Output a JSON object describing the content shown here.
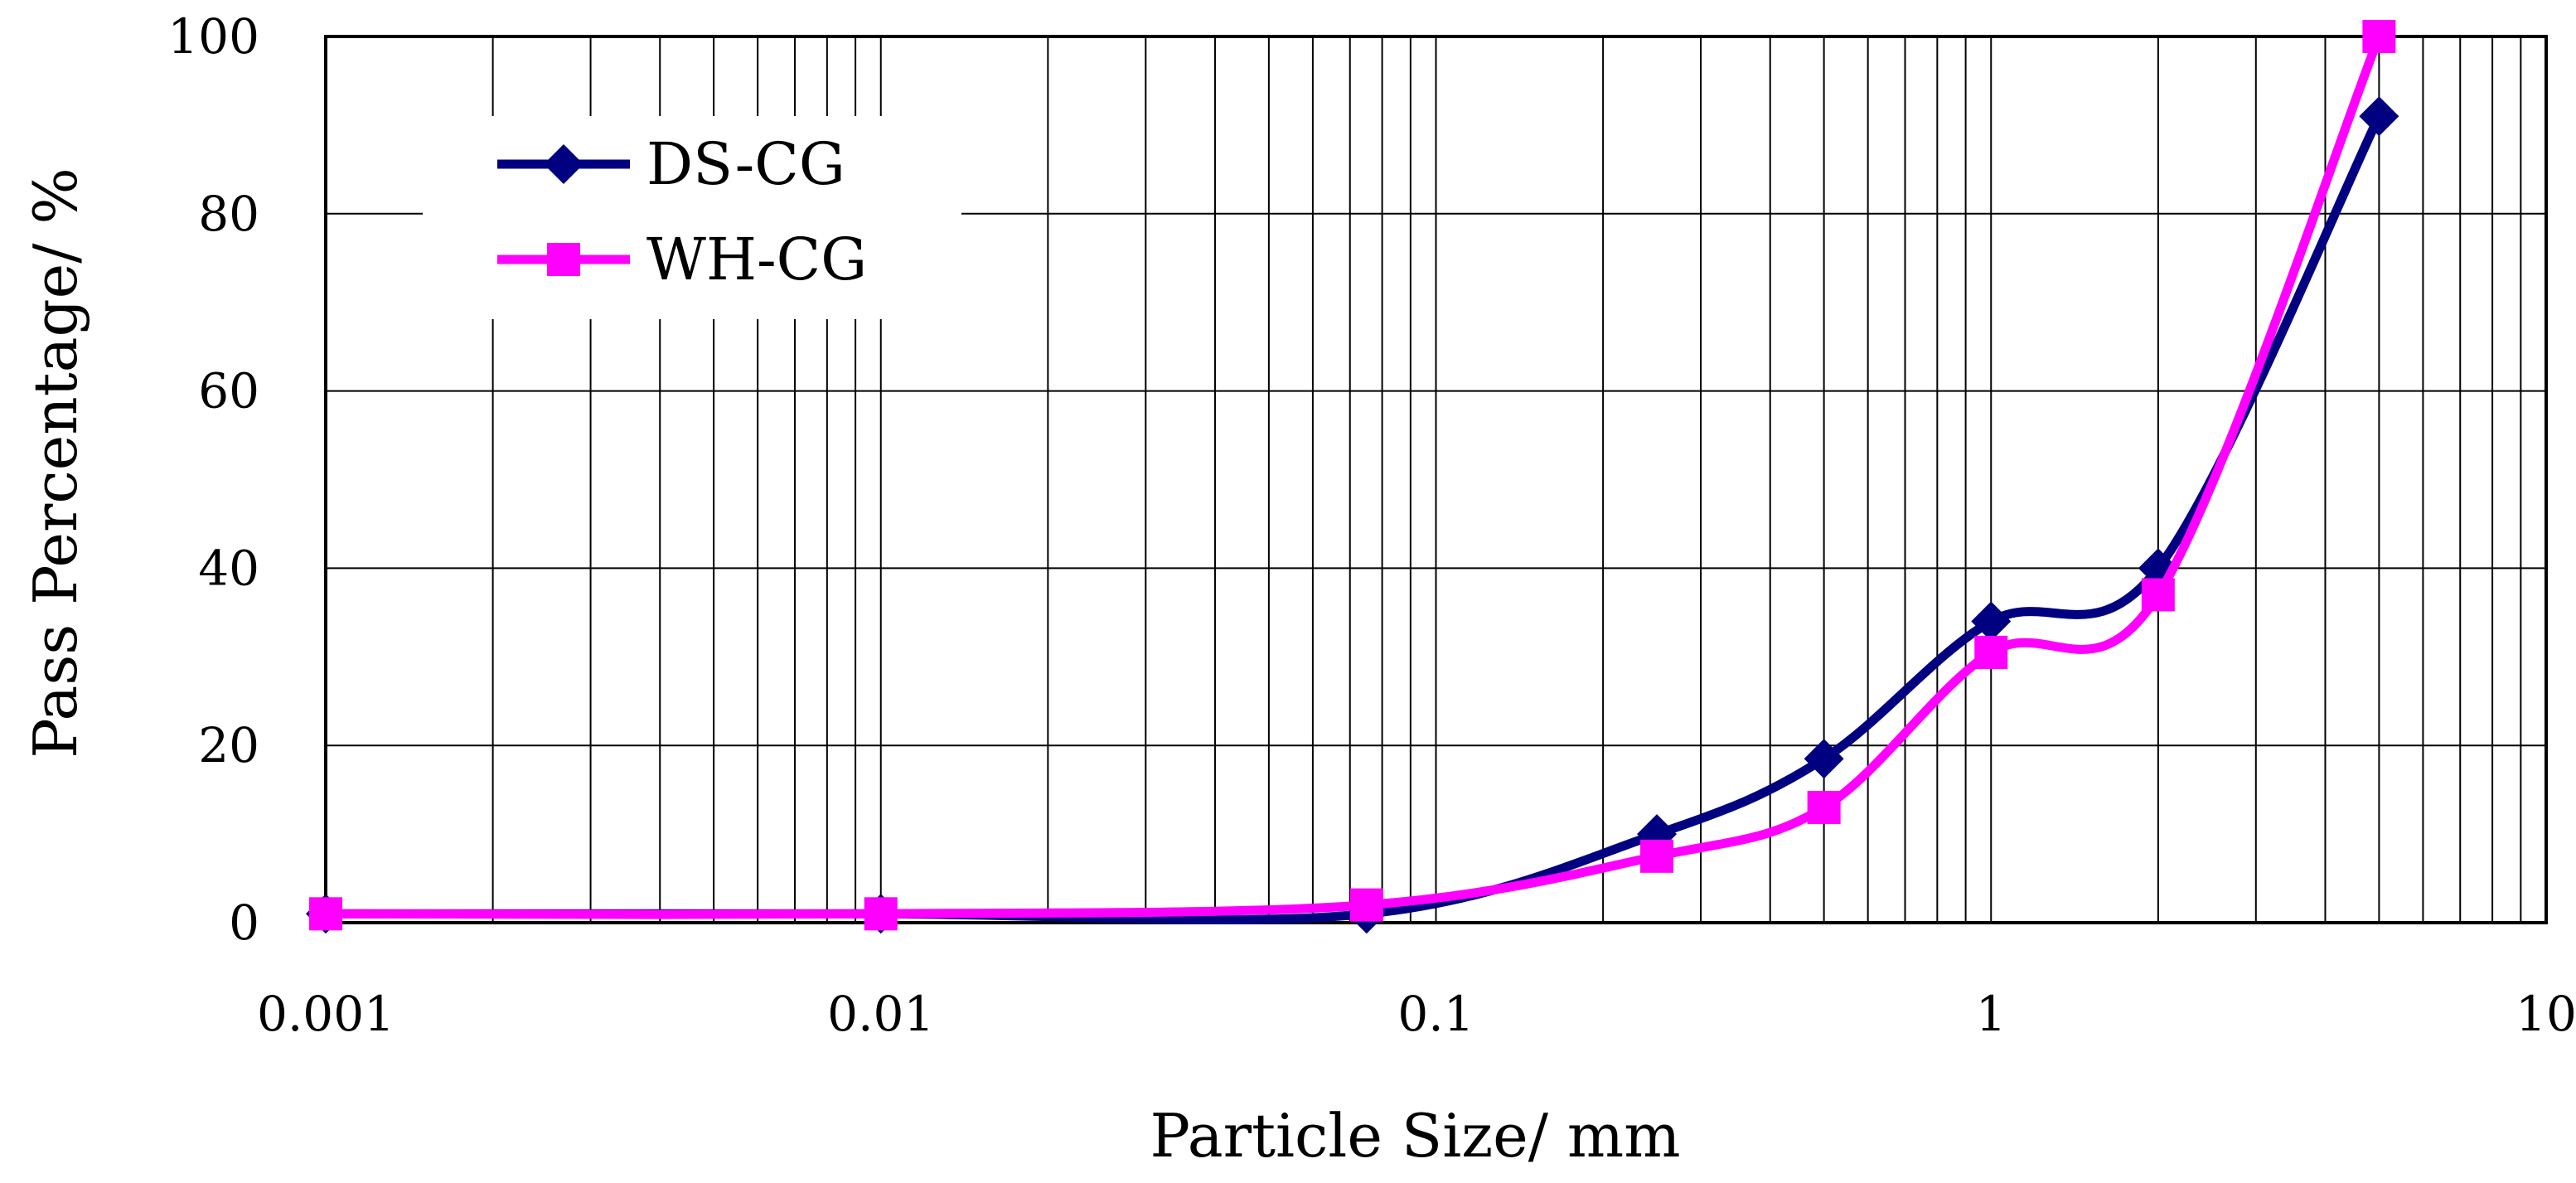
{
  "chart_data": {
    "type": "line",
    "x_scale": "log",
    "title": "",
    "xlabel": "Particle Size/ mm",
    "ylabel": "Pass Percentage/ %",
    "xlim": [
      0.001,
      10
    ],
    "ylim": [
      0,
      100
    ],
    "grid": true,
    "legend_position": "top-left",
    "x_ticks": [
      0.001,
      0.01,
      0.1,
      1,
      10
    ],
    "x_tick_labels": [
      "0.001",
      "0.01",
      "0.1",
      "1",
      "10"
    ],
    "y_ticks": [
      0,
      20,
      40,
      60,
      80,
      100
    ],
    "y_tick_labels": [
      "0",
      "20",
      "40",
      "60",
      "80",
      "100"
    ],
    "series": [
      {
        "name": "DS-CG",
        "color": "#000080",
        "marker": "diamond",
        "x": [
          0.001,
          0.01,
          0.075,
          0.25,
          0.5,
          1,
          2,
          5
        ],
        "y": [
          1,
          1,
          1,
          10,
          18.5,
          34,
          40,
          91
        ]
      },
      {
        "name": "WH-CG",
        "color": "#ff00ff",
        "marker": "square",
        "x": [
          0.001,
          0.01,
          0.075,
          0.25,
          0.5,
          1,
          2,
          5
        ],
        "y": [
          1,
          1,
          2,
          7.5,
          13,
          30.5,
          37,
          100
        ]
      }
    ]
  }
}
